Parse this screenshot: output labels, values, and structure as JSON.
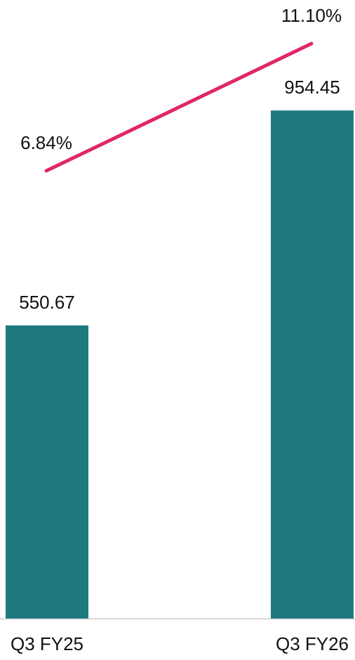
{
  "chart_data": {
    "type": "bar",
    "categories": [
      "Q3 FY25",
      "Q3 FY26"
    ],
    "series": [
      {
        "type": "bar",
        "color": "#1f7a80",
        "values": [
          550.67,
          954.45
        ]
      },
      {
        "type": "line",
        "axis": "y2",
        "color": "#e0266a",
        "values": [
          6.84,
          11.1
        ],
        "value_labels": [
          "6.84%",
          "11.10%"
        ]
      }
    ],
    "ylim": [
      0,
      1162
    ],
    "y2lim": [
      -8.15,
      12.56
    ]
  }
}
